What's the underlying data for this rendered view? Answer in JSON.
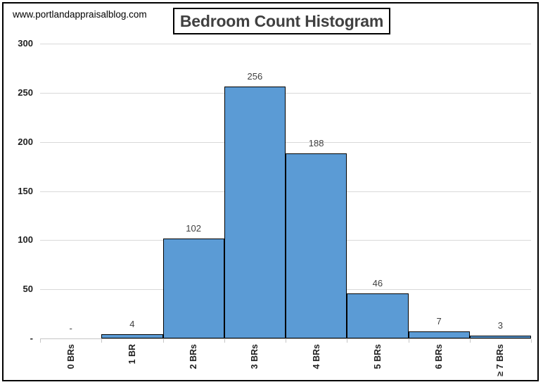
{
  "watermark": "www.portlandappraisalblog.com",
  "chart_data": {
    "type": "bar",
    "title": "Bedroom Count Histogram",
    "categories": [
      "0 BRs",
      "1 BR",
      "2 BRs",
      "3 BRs",
      "4 BRs",
      "5 BRs",
      "6 BRs",
      "≥ 7 BRs"
    ],
    "values": [
      0,
      4,
      102,
      256,
      188,
      46,
      7,
      3
    ],
    "data_labels": [
      "-",
      "4",
      "102",
      "256",
      "188",
      "46",
      "7",
      "3"
    ],
    "xlabel": "",
    "ylabel": "",
    "y_ticks": [
      0,
      50,
      100,
      150,
      200,
      250,
      300
    ],
    "y_tick_labels": [
      "-",
      "50",
      "100",
      "150",
      "200",
      "250",
      "300"
    ],
    "ylim": [
      0,
      300
    ],
    "grid": "horizontal",
    "legend": "none",
    "bar_color": "#5B9BD5",
    "bar_border_color": "#000000",
    "gridline_color": "#D9D9D9",
    "axis_color": "#C6C6C6",
    "tick_label_color": "#1F1F1F",
    "data_label_color": "#404040",
    "title_color": "#404040",
    "frame_border_color": "#000000"
  }
}
